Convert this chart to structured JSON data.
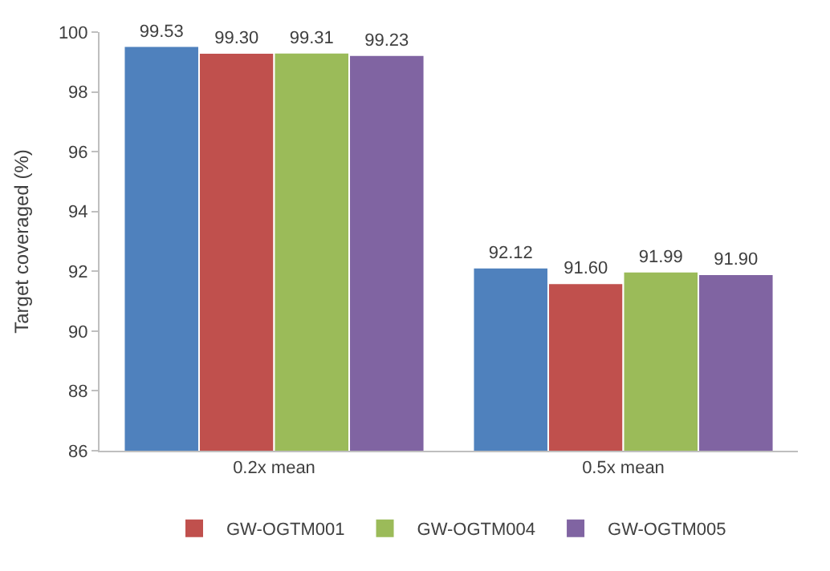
{
  "chart_data": {
    "type": "bar",
    "ylabel": "Target coveraged (%)",
    "categories": [
      "0.2x mean",
      "0.5x mean"
    ],
    "series": [
      {
        "color": "#4f81bd",
        "values": [
          99.53,
          92.12
        ],
        "value_labels": [
          "99.53",
          "92.12"
        ]
      },
      {
        "name": "GW-OGTM001",
        "color": "#c0504d",
        "values": [
          99.3,
          91.6
        ],
        "value_labels": [
          "99.30",
          "91.60"
        ]
      },
      {
        "name": "GW-OGTM004",
        "color": "#9bbb59",
        "values": [
          99.31,
          91.99
        ],
        "value_labels": [
          "99.31",
          "91.99"
        ]
      },
      {
        "name": "GW-OGTM005",
        "color": "#8064a2",
        "values": [
          99.23,
          91.9
        ],
        "value_labels": [
          "99.23",
          "91.90"
        ]
      }
    ],
    "ylim": [
      86,
      100
    ],
    "yticks": [
      86,
      88,
      90,
      92,
      94,
      96,
      98,
      100
    ],
    "grid": false,
    "legend": "bottom"
  }
}
